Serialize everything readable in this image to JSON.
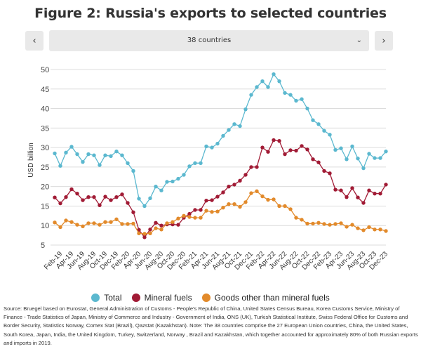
{
  "title": "Figure 2: Russia's exports to selected countries",
  "selector": {
    "value": "38 countries",
    "prev_label": "‹",
    "next_label": "›",
    "chevron": "⌄"
  },
  "source": "Source: Bruegel based on Eurostat, General Administration of Customs - People's Republic of China, United States Census Bureau, Korea Customs Service, Ministry of Finance - Trade Statistics of Japan, Ministry of Commerce and Industry - Government of India, ONS (UK), Turkish Statistical Institute, Swiss Federal Office for Customs and Border Security, Statistics Norway, Comex Stat (Brazil), Qazstat (Kazakhstan). Note: The 38 countries comprise the 27 European Union countries, China, the United States, South Korea, Japan, India, the United Kingdom, Turkey, Switzerland, Norway , Brazil and Kazakhstan, which together accounted for approximately 80% of both Russian exports and imports in 2019.",
  "chart_data": {
    "type": "line",
    "ylabel": "USD billion",
    "ylim": [
      5,
      50
    ],
    "yticks": [
      5,
      10,
      15,
      20,
      25,
      30,
      35,
      40,
      45,
      50
    ],
    "grid": true,
    "legend_position": "bottom",
    "x": [
      "Jan-19",
      "Feb-19",
      "Mar-19",
      "Apr-19",
      "May-19",
      "Jun-19",
      "Jul-19",
      "Aug-19",
      "Sep-19",
      "Oct-19",
      "Nov-19",
      "Dec-19",
      "Jan-20",
      "Feb-20",
      "Mar-20",
      "Apr-20",
      "May-20",
      "Jun-20",
      "Jul-20",
      "Aug-20",
      "Sep-20",
      "Oct-20",
      "Nov-20",
      "Dec-20",
      "Jan-21",
      "Feb-21",
      "Mar-21",
      "Apr-21",
      "May-21",
      "Jun-21",
      "Jul-21",
      "Aug-21",
      "Sep-21",
      "Oct-21",
      "Nov-21",
      "Dec-21",
      "Jan-22",
      "Feb-22",
      "Mar-22",
      "Apr-22",
      "May-22",
      "Jun-22",
      "Jul-22",
      "Aug-22",
      "Sep-22",
      "Oct-22",
      "Nov-22",
      "Dec-22",
      "Jan-23",
      "Feb-23",
      "Mar-23",
      "Apr-23",
      "May-23",
      "Jun-23",
      "Jul-23",
      "Aug-23",
      "Sep-23",
      "Oct-23",
      "Nov-23",
      "Dec-23"
    ],
    "xtick_labels": [
      "Feb-19",
      "Apr-19",
      "Jun-19",
      "Aug-19",
      "Oct-19",
      "Dec-19",
      "Feb-20",
      "Apr-20",
      "Jun-20",
      "Aug-20",
      "Oct-20",
      "Dec-20",
      "Feb-21",
      "Apr-21",
      "Jun-21",
      "Aug-21",
      "Oct-21",
      "Dec-21",
      "Feb-22",
      "Apr-22",
      "Jun-22",
      "Aug-22",
      "Oct-22",
      "Dec-22",
      "Feb-23",
      "Apr-23",
      "Jun-23",
      "Aug-23",
      "Oct-23",
      "Dec-23"
    ],
    "series": [
      {
        "name": "Total",
        "color": "#5bb8cf",
        "values": [
          28.5,
          25.3,
          28.7,
          30.2,
          28.3,
          26.3,
          28.3,
          28.0,
          25.5,
          28.0,
          27.8,
          29.0,
          28.0,
          26.0,
          24.0,
          16.9,
          15.0,
          17.0,
          20.0,
          19.0,
          21.2,
          21.3,
          22.0,
          23.0,
          25.2,
          26.0,
          26.0,
          30.3,
          30.0,
          31.0,
          33.0,
          34.5,
          36.0,
          35.5,
          39.8,
          43.5,
          45.5,
          47.0,
          45.5,
          48.8,
          47.0,
          44.0,
          43.5,
          42.0,
          42.4,
          40.0,
          37.0,
          36.0,
          34.3,
          33.3,
          29.4,
          29.8,
          27.0,
          30.3,
          27.2,
          24.7,
          28.4,
          27.3,
          27.3,
          29.0
        ]
      },
      {
        "name": "Mineral fuels",
        "color": "#a11b35",
        "values": [
          17.2,
          15.7,
          17.3,
          19.3,
          18.2,
          16.5,
          17.3,
          17.3,
          15.2,
          17.4,
          16.5,
          17.3,
          18.0,
          15.8,
          13.4,
          8.9,
          7.0,
          9.0,
          10.7,
          10.0,
          10.3,
          10.3,
          10.2,
          12.0,
          13.0,
          14.0,
          14.0,
          16.4,
          16.5,
          17.4,
          18.5,
          20.0,
          20.5,
          21.5,
          23.0,
          25.0,
          25.0,
          30.0,
          28.9,
          31.9,
          31.7,
          28.3,
          29.3,
          29.2,
          30.4,
          29.5,
          27.0,
          26.2,
          24.0,
          23.4,
          19.2,
          19.0,
          17.3,
          19.6,
          17.2,
          15.8,
          19.0,
          18.2,
          18.2,
          20.5
        ]
      },
      {
        "name": "Goods other than mineral fuels",
        "color": "#e28a2b",
        "values": [
          10.8,
          9.6,
          11.3,
          10.9,
          10.2,
          9.8,
          10.6,
          10.6,
          10.2,
          10.9,
          10.9,
          11.6,
          10.4,
          10.4,
          10.5,
          8.0,
          7.9,
          8.0,
          9.3,
          9.0,
          10.6,
          10.9,
          11.8,
          12.5,
          12.2,
          12.0,
          12.0,
          13.8,
          13.5,
          13.6,
          14.6,
          15.5,
          15.5,
          14.8,
          16.0,
          18.3,
          18.8,
          17.5,
          16.6,
          16.7,
          15.0,
          15.0,
          14.2,
          12.0,
          11.5,
          10.5,
          10.5,
          10.7,
          10.4,
          10.2,
          10.4,
          10.6,
          9.7,
          10.2,
          9.3,
          8.8,
          9.6,
          9.0,
          9.0,
          8.6
        ]
      }
    ]
  }
}
